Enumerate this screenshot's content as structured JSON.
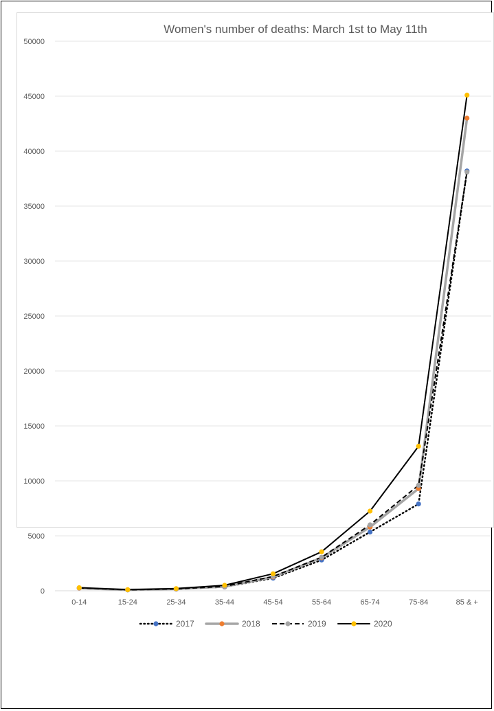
{
  "chart_data": {
    "type": "line",
    "title": "Women's number of deaths: March 1st to May 11th",
    "xlabel": "",
    "ylabel": "",
    "categories": [
      "0-14",
      "15-24",
      "25-34",
      "35-44",
      "45-54",
      "55-64",
      "65-74",
      "75-84",
      "85 & +"
    ],
    "ylim": [
      0,
      50000
    ],
    "yticks": [
      0,
      5000,
      10000,
      15000,
      20000,
      25000,
      30000,
      35000,
      40000,
      45000,
      50000
    ],
    "grid": true,
    "legend_position": "bottom",
    "series": [
      {
        "name": "2017",
        "values": [
          250,
          80,
          150,
          350,
          1150,
          2800,
          5350,
          7900,
          38200
        ],
        "line_color": "#000000",
        "marker_color": "#4472c4",
        "line_style": "dotted"
      },
      {
        "name": "2018",
        "values": [
          240,
          90,
          160,
          380,
          1250,
          3000,
          5800,
          9300,
          43000
        ],
        "line_color": "#a5a5a5",
        "marker_color": "#ed7d31",
        "line_style": "solid-thick"
      },
      {
        "name": "2019",
        "values": [
          260,
          85,
          170,
          400,
          1300,
          3050,
          6000,
          9600,
          38100
        ],
        "line_color": "#000000",
        "marker_color": "#a5a5a5",
        "line_style": "dashed"
      },
      {
        "name": "2020",
        "values": [
          280,
          100,
          200,
          500,
          1550,
          3550,
          7250,
          13150,
          45100
        ],
        "line_color": "#000000",
        "marker_color": "#ffc000",
        "line_style": "solid"
      }
    ]
  }
}
